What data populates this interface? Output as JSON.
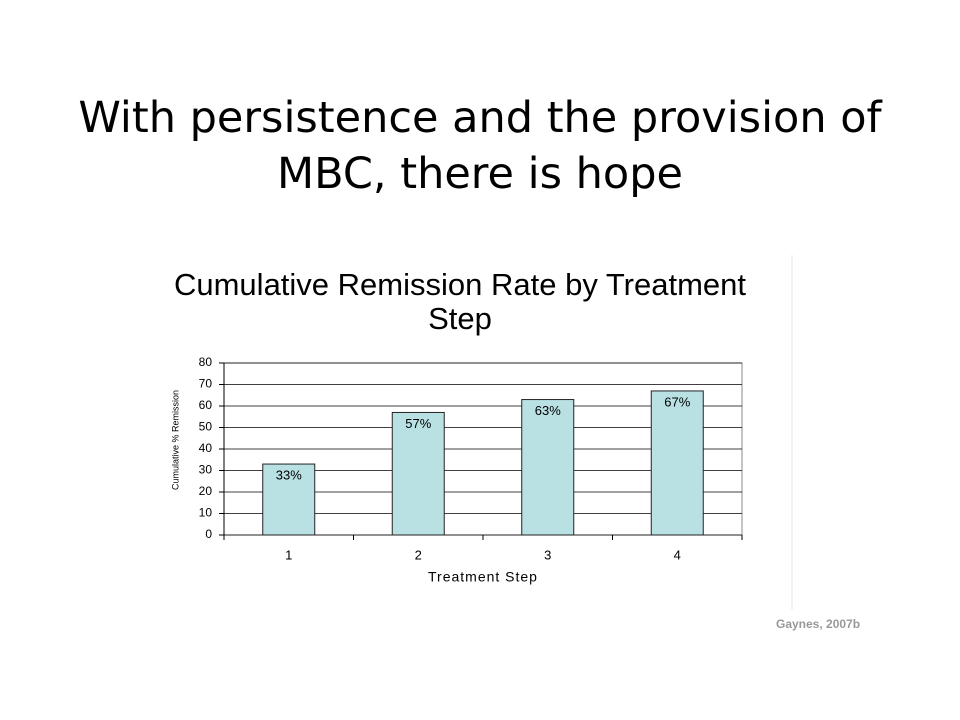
{
  "slide": {
    "title": "With persistence and the provision of MBC, there is hope",
    "source": "Gaynes, 2007b"
  },
  "chart_data": {
    "type": "bar",
    "title": "Cumulative Remission Rate by Treatment Step",
    "x_label": "Treatment Step",
    "y_label": "Cumulative % Remission",
    "categories": [
      "1",
      "2",
      "3",
      "4"
    ],
    "values": [
      33,
      57,
      63,
      67
    ],
    "value_labels": [
      "33%",
      "57%",
      "63%",
      "67%"
    ],
    "color": "#b9e0e3",
    "ylim": [
      0,
      80
    ],
    "yticks": [
      0,
      10,
      20,
      30,
      40,
      50,
      60,
      70,
      80
    ],
    "grid": true
  }
}
